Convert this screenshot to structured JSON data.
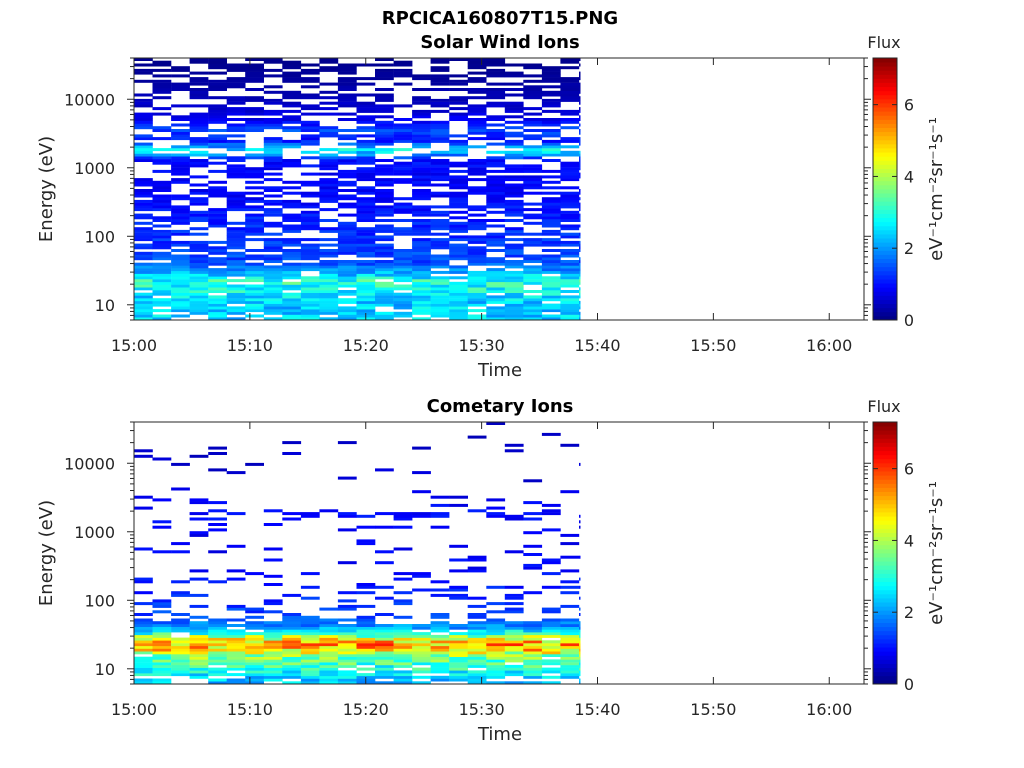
{
  "figure_title": "RPCICA160807T15.PNG",
  "colors": {
    "axis": "#262626",
    "colormap": "jet"
  },
  "chart_data": [
    {
      "type": "heatmap",
      "title": "Solar Wind Ions",
      "xlabel": "Time",
      "ylabel": "Energy (eV)",
      "x_scale": "time",
      "y_scale": "log",
      "xlim": [
        "15:00",
        "16:03"
      ],
      "ylim": [
        6,
        40000
      ],
      "x_ticks": [
        "15:00",
        "15:10",
        "15:20",
        "15:30",
        "15:40",
        "15:50",
        "16:00"
      ],
      "y_ticks": [
        10,
        100,
        1000,
        10000
      ],
      "y_tick_labels": [
        "10",
        "100",
        "1000",
        "10000"
      ],
      "data_time_range": [
        "15:00",
        "15:38.5"
      ],
      "colorbar": {
        "title": "Flux",
        "label": "eV⁻¹cm⁻²sr⁻¹s⁻¹",
        "range": [
          0,
          7.3
        ],
        "ticks": [
          0,
          2,
          4,
          6
        ],
        "tick_labels": [
          "0",
          "2",
          "4",
          "6"
        ]
      },
      "flux_profile": [
        {
          "energy_eV": 7,
          "flux": 2.4
        },
        {
          "energy_eV": 10,
          "flux": 2.4
        },
        {
          "energy_eV": 13,
          "flux": 2.5
        },
        {
          "energy_eV": 17,
          "flux": 2.8
        },
        {
          "energy_eV": 22,
          "flux": 3.0
        },
        {
          "energy_eV": 28,
          "flux": 2.3
        },
        {
          "energy_eV": 40,
          "flux": 1.5
        },
        {
          "energy_eV": 70,
          "flux": 1.3
        },
        {
          "energy_eV": 120,
          "flux": 1.2
        },
        {
          "energy_eV": 200,
          "flux": 1.1
        },
        {
          "energy_eV": 400,
          "flux": 0.9
        },
        {
          "energy_eV": 800,
          "flux": 0.9
        },
        {
          "energy_eV": 1300,
          "flux": 1.0
        },
        {
          "energy_eV": 1800,
          "flux": 2.7
        },
        {
          "energy_eV": 2500,
          "flux": 1.0
        },
        {
          "energy_eV": 3500,
          "flux": 1.4
        },
        {
          "energy_eV": 5000,
          "flux": 0.8
        },
        {
          "energy_eV": 10000,
          "flux": 0.4
        },
        {
          "energy_eV": 20000,
          "flux": 0.2
        },
        {
          "energy_eV": 36000,
          "flux": 0.1
        }
      ],
      "sparsity_profile": [
        {
          "energy_eV": 7,
          "fill": 0.82
        },
        {
          "energy_eV": 30,
          "fill": 0.95
        },
        {
          "energy_eV": 100,
          "fill": 0.62
        },
        {
          "energy_eV": 1000,
          "fill": 0.68
        },
        {
          "energy_eV": 10000,
          "fill": 0.58
        },
        {
          "energy_eV": 40000,
          "fill": 0.5
        }
      ]
    },
    {
      "type": "heatmap",
      "title": "Cometary Ions",
      "xlabel": "Time",
      "ylabel": "Energy (eV)",
      "x_scale": "time",
      "y_scale": "log",
      "xlim": [
        "15:00",
        "16:03"
      ],
      "ylim": [
        6,
        40000
      ],
      "x_ticks": [
        "15:00",
        "15:10",
        "15:20",
        "15:30",
        "15:40",
        "15:50",
        "16:00"
      ],
      "y_ticks": [
        10,
        100,
        1000,
        10000
      ],
      "y_tick_labels": [
        "10",
        "100",
        "1000",
        "10000"
      ],
      "data_time_range": [
        "15:00",
        "15:38.5"
      ],
      "colorbar": {
        "title": "Flux",
        "label": "eV⁻¹cm⁻²sr⁻¹s⁻¹",
        "range": [
          0,
          7.3
        ],
        "ticks": [
          0,
          2,
          4,
          6
        ],
        "tick_labels": [
          "0",
          "2",
          "4",
          "6"
        ]
      },
      "flux_profile": [
        {
          "energy_eV": 7,
          "flux": 2.3
        },
        {
          "energy_eV": 9,
          "flux": 2.8
        },
        {
          "energy_eV": 12,
          "flux": 3.2
        },
        {
          "energy_eV": 16,
          "flux": 3.8
        },
        {
          "energy_eV": 19,
          "flux": 4.8
        },
        {
          "energy_eV": 23,
          "flux": 5.2
        },
        {
          "energy_eV": 28,
          "flux": 4.3
        },
        {
          "energy_eV": 33,
          "flux": 3.0
        },
        {
          "energy_eV": 40,
          "flux": 2.0
        },
        {
          "energy_eV": 60,
          "flux": 1.4
        },
        {
          "energy_eV": 100,
          "flux": 1.2
        },
        {
          "energy_eV": 300,
          "flux": 0.9
        },
        {
          "energy_eV": 1000,
          "flux": 0.8
        },
        {
          "energy_eV": 1800,
          "flux": 1.0
        },
        {
          "energy_eV": 5000,
          "flux": 0.6
        },
        {
          "energy_eV": 20000,
          "flux": 0.5
        }
      ],
      "sparsity_profile": [
        {
          "energy_eV": 7,
          "fill": 0.75
        },
        {
          "energy_eV": 16,
          "fill": 1.0
        },
        {
          "energy_eV": 40,
          "fill": 0.95
        },
        {
          "energy_eV": 60,
          "fill": 0.3
        },
        {
          "energy_eV": 300,
          "fill": 0.12
        },
        {
          "energy_eV": 1500,
          "fill": 0.08
        },
        {
          "energy_eV": 1800,
          "fill": 0.55
        },
        {
          "energy_eV": 2200,
          "fill": 0.06
        },
        {
          "energy_eV": 10000,
          "fill": 0.06
        },
        {
          "energy_eV": 40000,
          "fill": 0.01
        }
      ]
    }
  ]
}
